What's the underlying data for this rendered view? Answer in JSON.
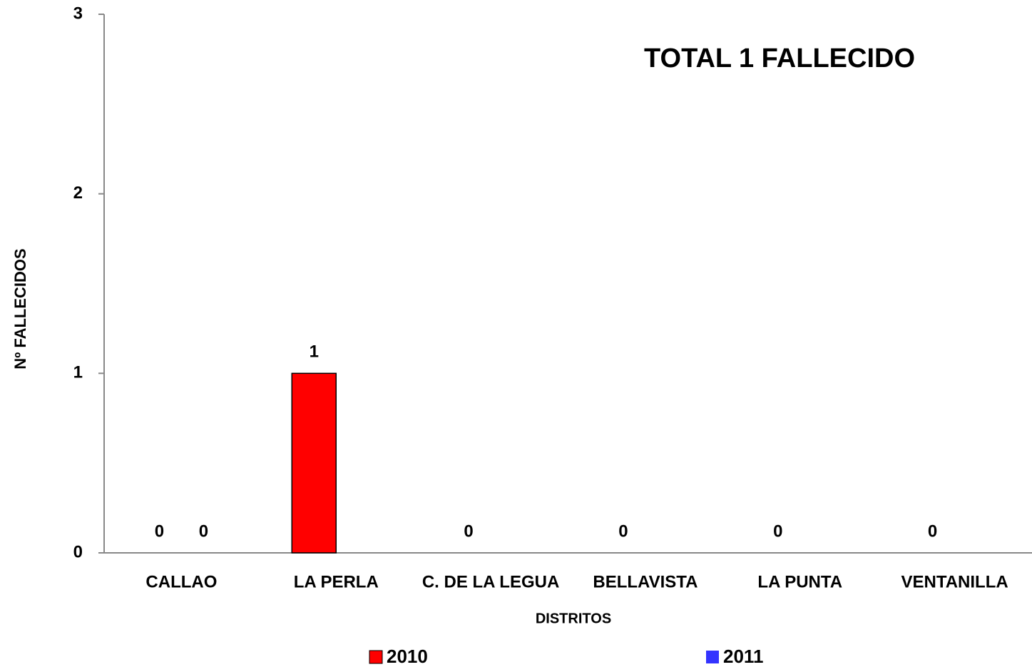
{
  "chart_data": {
    "type": "bar",
    "title": "TOTAL 1  FALLECIDO",
    "x_label": "DISTRITOS",
    "y_label": "Nº FALLECIDOS",
    "categories": [
      "CALLAO",
      "LA PERLA",
      "C. DE LA LEGUA",
      "BELLAVISTA",
      "LA PUNTA",
      "VENTANILLA"
    ],
    "series": [
      {
        "name": "2010",
        "color": "#ff0000",
        "values": [
          0,
          1,
          0,
          0,
          0,
          0
        ]
      },
      {
        "name": "2011",
        "color": "#3333ff",
        "values": [
          0,
          null,
          null,
          null,
          null,
          null
        ]
      }
    ],
    "ylim": [
      0,
      3
    ],
    "yticks": [
      0,
      1,
      2,
      3
    ],
    "grid": false,
    "legend": "bottom"
  }
}
